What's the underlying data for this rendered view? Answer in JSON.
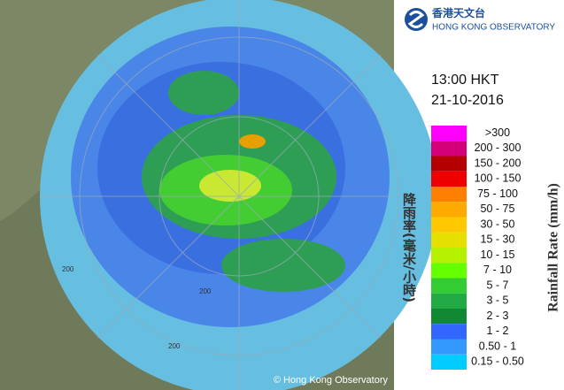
{
  "header": {
    "logo_title": "香港天文台",
    "logo_subtitle": "HONG KONG OBSERVATORY"
  },
  "time": "13:00 HKT",
  "date": "21-10-2016",
  "legend": {
    "title_zh": "降雨率(毫米/小時)",
    "title_en": "Rainfall Rate (mm/h)",
    "items": [
      {
        "label": ">300",
        "color": "#ff00ff"
      },
      {
        "label": "200 - 300",
        "color": "#d4007a"
      },
      {
        "label": "150 - 200",
        "color": "#b40000"
      },
      {
        "label": "100 - 150",
        "color": "#ee0000"
      },
      {
        "label": "75 - 100",
        "color": "#ff7f00"
      },
      {
        "label": "50 - 75",
        "color": "#ffaa00"
      },
      {
        "label": "30 - 50",
        "color": "#ffc800"
      },
      {
        "label": "15 - 30",
        "color": "#e6e000"
      },
      {
        "label": "10 - 15",
        "color": "#b4f000"
      },
      {
        "label": "7 - 10",
        "color": "#66ff00"
      },
      {
        "label": "5 - 7",
        "color": "#33cc33"
      },
      {
        "label": "3 - 5",
        "color": "#22aa44"
      },
      {
        "label": "2 - 3",
        "color": "#118833"
      },
      {
        "label": "1 - 2",
        "color": "#3366ff"
      },
      {
        "label": "0.50 - 1",
        "color": "#3399ff"
      },
      {
        "label": "0.15 - 0.50",
        "color": "#00ccff"
      }
    ]
  },
  "map": {
    "ring_labels": [
      "200",
      "200",
      "200"
    ],
    "copyright": "© Hong Kong Observatory"
  }
}
